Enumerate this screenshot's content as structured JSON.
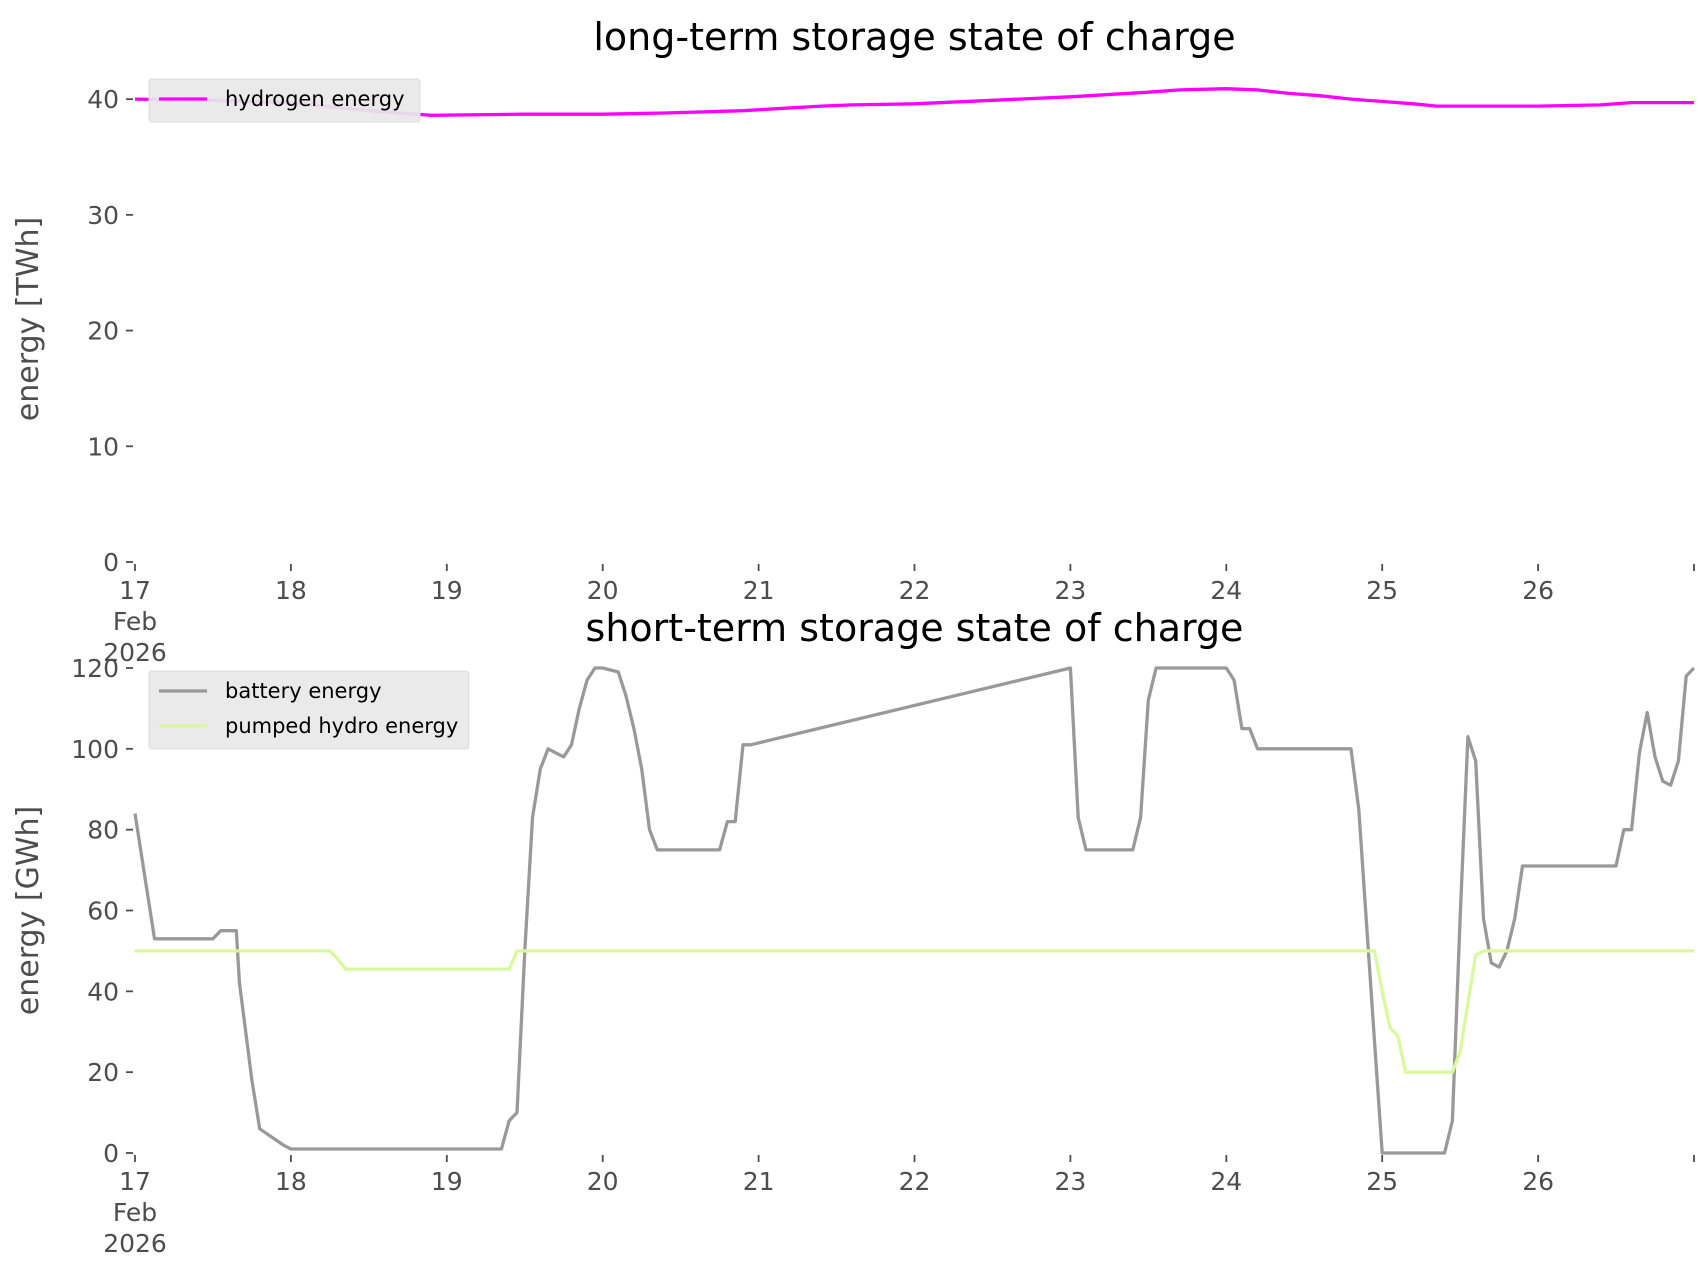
{
  "chart_data": [
    {
      "type": "line",
      "title": "long-term storage state of charge",
      "xlabel": "",
      "ylabel": "energy [TWh]",
      "ylim": [
        0,
        42
      ],
      "yticks": [
        0,
        10,
        20,
        30,
        40
      ],
      "xlim": [
        17,
        27
      ],
      "xticks": [
        {
          "value": 17,
          "lines": [
            "17",
            "Feb",
            "2026"
          ]
        },
        {
          "value": 18,
          "lines": [
            "18"
          ]
        },
        {
          "value": 19,
          "lines": [
            "19"
          ]
        },
        {
          "value": 20,
          "lines": [
            "20"
          ]
        },
        {
          "value": 21,
          "lines": [
            "21"
          ]
        },
        {
          "value": 22,
          "lines": [
            "22"
          ]
        },
        {
          "value": 23,
          "lines": [
            "23"
          ]
        },
        {
          "value": 24,
          "lines": [
            "24"
          ]
        },
        {
          "value": 25,
          "lines": [
            "25"
          ]
        },
        {
          "value": 26,
          "lines": [
            "26"
          ]
        }
      ],
      "grid": false,
      "legend_position": "top-left",
      "series": [
        {
          "name": "hydrogen energy",
          "color": "#ff00ff",
          "x": [
            17,
            17.5,
            18,
            18.5,
            18.9,
            19.5,
            20,
            20.4,
            20.9,
            21.4,
            21.6,
            22,
            22.5,
            23,
            23.5,
            23.7,
            24,
            24.2,
            24.4,
            24.6,
            24.8,
            25.2,
            25.35,
            25.6,
            26,
            26.4,
            26.6,
            27
          ],
          "y": [
            40,
            39.9,
            39.7,
            39,
            38.6,
            38.7,
            38.7,
            38.8,
            39,
            39.4,
            39.5,
            39.6,
            39.9,
            40.2,
            40.6,
            40.8,
            40.9,
            40.8,
            40.5,
            40.3,
            40,
            39.6,
            39.4,
            39.4,
            39.4,
            39.5,
            39.7,
            39.7
          ]
        }
      ]
    },
    {
      "type": "line",
      "title": "short-term storage state of charge",
      "xlabel": "",
      "ylabel": "energy [GWh]",
      "ylim": [
        0,
        120
      ],
      "yticks": [
        0,
        20,
        40,
        60,
        80,
        100,
        120
      ],
      "xlim": [
        17,
        27
      ],
      "xticks": [
        {
          "value": 17,
          "lines": [
            "17",
            "Feb",
            "2026"
          ]
        },
        {
          "value": 18,
          "lines": [
            "18"
          ]
        },
        {
          "value": 19,
          "lines": [
            "19"
          ]
        },
        {
          "value": 20,
          "lines": [
            "20"
          ]
        },
        {
          "value": 21,
          "lines": [
            "21"
          ]
        },
        {
          "value": 22,
          "lines": [
            "22"
          ]
        },
        {
          "value": 23,
          "lines": [
            "23"
          ]
        },
        {
          "value": 24,
          "lines": [
            "24"
          ]
        },
        {
          "value": 25,
          "lines": [
            "25"
          ]
        },
        {
          "value": 26,
          "lines": [
            "26"
          ]
        }
      ],
      "grid": false,
      "legend_position": "top-left",
      "series": [
        {
          "name": "battery energy",
          "color": "#999999",
          "x": [
            17,
            17.125,
            17.5,
            17.55,
            17.65,
            17.67,
            17.75,
            17.8,
            17.95,
            18,
            19.35,
            19.4,
            19.45,
            19.5,
            19.55,
            19.6,
            19.65,
            19.7,
            19.75,
            19.8,
            19.85,
            19.9,
            19.95,
            20,
            20.1,
            20.15,
            20.2,
            20.25,
            20.3,
            20.35,
            20.45,
            20.75,
            20.8,
            20.85,
            20.9,
            20.95,
            23,
            23.05,
            23.1,
            23.4,
            23.45,
            23.5,
            23.55,
            23.6,
            24,
            24.05,
            24.1,
            24.15,
            24.2,
            24.25,
            24.8,
            24.85,
            24.95,
            25,
            25.4,
            25.45,
            25.5,
            25.55,
            25.6,
            25.65,
            25.7,
            25.75,
            25.8,
            25.85,
            25.9,
            25.95,
            26.45,
            26.5,
            26.55,
            26.6,
            26.65,
            26.7,
            26.75,
            26.8,
            26.85,
            26.9,
            26.95,
            27
          ],
          "y": [
            84,
            53,
            53,
            55,
            55,
            42,
            18,
            6,
            2,
            1,
            1,
            8,
            10,
            50,
            83,
            95,
            100,
            99,
            98,
            101,
            110,
            117,
            120,
            120,
            119,
            113,
            105,
            95,
            80,
            75,
            75,
            75,
            82,
            82,
            101,
            101,
            120,
            83,
            75,
            75,
            83,
            112,
            120,
            120,
            120,
            117,
            105,
            105,
            100,
            100,
            100,
            85,
            28,
            0,
            0,
            8,
            58,
            103,
            97,
            58,
            47,
            46,
            50,
            58,
            71,
            71,
            71,
            71,
            80,
            80,
            99,
            109,
            98,
            92,
            91,
            97,
            118,
            120
          ]
        },
        {
          "name": "pumped hydro energy",
          "color": "#d9f99d",
          "x": [
            17,
            18.25,
            18.3,
            18.35,
            19.35,
            19.4,
            19.45,
            24.95,
            25,
            25.05,
            25.1,
            25.15,
            25.2,
            25.45,
            25.5,
            25.55,
            25.6,
            25.65,
            27
          ],
          "y": [
            50,
            50,
            48,
            45.5,
            45.5,
            45.5,
            50,
            50,
            40,
            31,
            29,
            20,
            20,
            20,
            25,
            37,
            49,
            50,
            50
          ]
        }
      ]
    }
  ]
}
